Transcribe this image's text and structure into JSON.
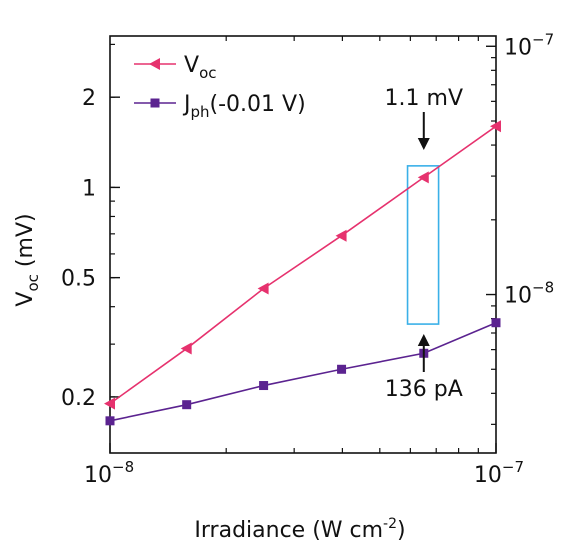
{
  "chart_data": {
    "type": "line",
    "xscale": "log",
    "yscale": "log",
    "y2scale": "log",
    "xlabel": "Irradiance (W cm",
    "xlabel_sup": "-2",
    "xlabel_end": ")",
    "ylabel_main": "V",
    "ylabel_sub": "oc",
    "ylabel_unit": " (mV)",
    "xlim": [
      1e-08,
      1e-07
    ],
    "ylim": [
      0.13,
      3.2
    ],
    "y2lim": [
      2.3e-09,
      1.1e-07
    ],
    "xticks": [
      {
        "value": 1e-08,
        "base": "10",
        "exp": "−8"
      },
      {
        "value": 1e-07,
        "base": "10",
        "exp": "−7"
      }
    ],
    "yticks": [
      {
        "value": 0.2,
        "label": "0.2"
      },
      {
        "value": 0.5,
        "label": "0.5"
      },
      {
        "value": 1,
        "label": "1"
      },
      {
        "value": 2,
        "label": "2"
      }
    ],
    "y2ticks": [
      {
        "value": 1e-08,
        "base": "10",
        "exp": "−8"
      },
      {
        "value": 1e-07,
        "base": "10",
        "exp": "−7"
      }
    ],
    "legend_position": "top-left",
    "series": [
      {
        "name": "V",
        "name_sub": "oc",
        "name_suffix": "",
        "axis": "left",
        "marker": "triangle-left",
        "color": "#e6326e",
        "x": [
          1e-08,
          1.58e-08,
          2.5e-08,
          3.98e-08,
          6.5e-08,
          1e-07
        ],
        "values": [
          0.19,
          0.29,
          0.46,
          0.69,
          1.08,
          1.6
        ]
      },
      {
        "name": "J",
        "name_sub": "ph",
        "name_suffix": "(-0.01 V)",
        "axis": "right",
        "marker": "square",
        "color": "#5b2390",
        "x": [
          1e-08,
          1.58e-08,
          2.5e-08,
          3.98e-08,
          6.5e-08,
          1e-07
        ],
        "values": [
          3.1e-09,
          3.6e-09,
          4.3e-09,
          5e-09,
          5.8e-09,
          7.7e-09
        ]
      }
    ],
    "annotations": [
      {
        "text": "1.1 mV",
        "points_to": {
          "x": 6.5e-08,
          "y": 1.08,
          "axis": "left"
        },
        "direction": "down"
      },
      {
        "text": "136 pA",
        "points_to": {
          "x": 6.5e-08,
          "y": 5.8e-09,
          "axis": "right"
        },
        "direction": "up"
      }
    ],
    "highlight_box": {
      "x": [
        5.9e-08,
        7.1e-08
      ],
      "y": [
        0.35,
        1.18
      ],
      "color": "#3ab0e8"
    }
  }
}
